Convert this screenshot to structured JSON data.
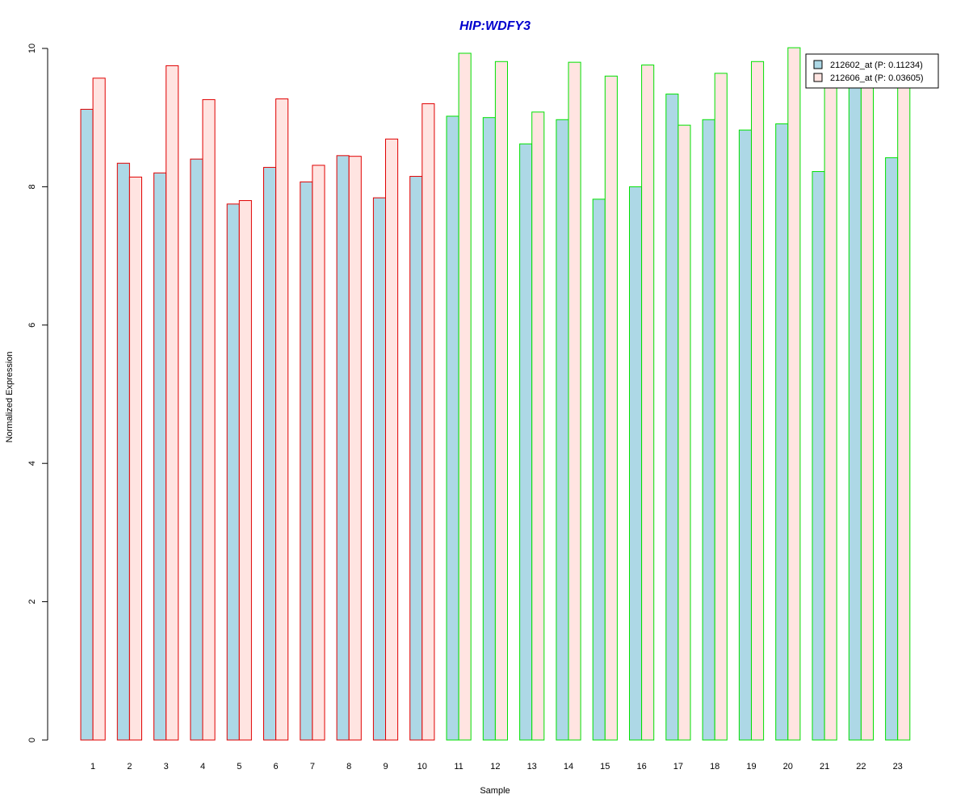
{
  "chart_data": {
    "type": "bar",
    "title": "HIP:WDFY3",
    "xlabel": "Sample",
    "ylabel": "Normalized Expression",
    "ylim": [
      0,
      10
    ],
    "yticks": [
      0,
      2,
      4,
      6,
      8,
      10
    ],
    "grid": false,
    "legend_position": "top-right",
    "categories": [
      "1",
      "2",
      "3",
      "4",
      "5",
      "6",
      "7",
      "8",
      "9",
      "10",
      "11",
      "12",
      "13",
      "14",
      "15",
      "16",
      "17",
      "18",
      "19",
      "20",
      "21",
      "22",
      "23"
    ],
    "groups": [
      {
        "samples": [
          "1",
          "2",
          "3",
          "4",
          "5",
          "6",
          "7",
          "8",
          "9",
          "10"
        ],
        "border_color": "#e00000"
      },
      {
        "samples": [
          "11",
          "12",
          "13",
          "14",
          "15",
          "16",
          "17",
          "18",
          "19",
          "20",
          "21",
          "22",
          "23"
        ],
        "border_color": "#00e000"
      }
    ],
    "series": [
      {
        "name": "212602_at (P: 0.11234)",
        "color": "#add8e6",
        "values": [
          9.12,
          8.34,
          8.2,
          8.4,
          7.75,
          8.28,
          8.07,
          8.45,
          7.84,
          8.15,
          9.02,
          9.0,
          8.62,
          8.97,
          7.82,
          8.0,
          9.34,
          8.97,
          8.82,
          8.91,
          8.22,
          9.5,
          8.42
        ]
      },
      {
        "name": "212606_at (P: 0.03605)",
        "color": "#ffe4e1",
        "values": [
          9.57,
          8.14,
          9.75,
          9.26,
          7.8,
          9.27,
          8.31,
          8.44,
          8.69,
          9.2,
          9.93,
          9.81,
          9.08,
          9.8,
          9.6,
          9.76,
          8.89,
          9.64,
          9.81,
          10.01,
          9.6,
          9.55,
          9.6
        ]
      }
    ]
  },
  "colors": {
    "title": "#0000cd",
    "axis": "#000000",
    "legend_border": "#000000"
  }
}
